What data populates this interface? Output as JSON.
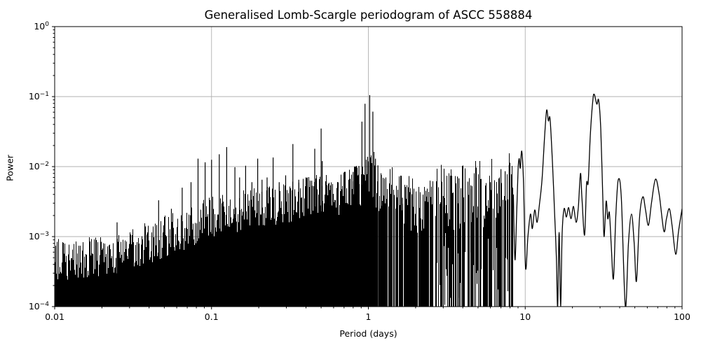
{
  "chart_data": {
    "type": "line",
    "title": "Generalised Lomb-Scargle periodogram of ASCC 558884",
    "xlabel": "Period (days)",
    "ylabel": "Power",
    "xscale": "log",
    "yscale": "log",
    "xlim": [
      0.01,
      100
    ],
    "ylim": [
      0.0001,
      1
    ],
    "grid": true,
    "legend": "none",
    "line_color": "#000000",
    "grid_color": "#b0b0b0",
    "background_color": "#ffffff",
    "x_tick_values": [
      0.01,
      0.1,
      1,
      10,
      100
    ],
    "x_tick_labels": [
      "0.01",
      "0.1",
      "1",
      "10",
      "100"
    ],
    "y_tick_exponents": [
      0,
      -1,
      -2,
      -3,
      -4
    ],
    "main_peaks": [
      {
        "period_days": 1.02,
        "power": 0.105
      },
      {
        "period_days": 27.6,
        "power": 0.107
      },
      {
        "period_days": 29.4,
        "power": 0.089
      },
      {
        "period_days": 0.952,
        "power": 0.079
      },
      {
        "period_days": 13.7,
        "power": 0.064
      },
      {
        "period_days": 1.068,
        "power": 0.061
      },
      {
        "period_days": 0.91,
        "power": 0.044
      },
      {
        "period_days": 0.5,
        "power": 0.035
      },
      {
        "period_days": 0.33,
        "power": 0.021
      },
      {
        "period_days": 9.5,
        "power": 0.0166
      }
    ],
    "noise_envelope": [
      [
        0.01,
        0.00055
      ],
      [
        0.013,
        0.00058
      ],
      [
        0.017,
        0.00062
      ],
      [
        0.022,
        0.00068
      ],
      [
        0.028,
        0.00075
      ],
      [
        0.035,
        0.0009
      ],
      [
        0.045,
        0.0011
      ],
      [
        0.055,
        0.0013
      ],
      [
        0.07,
        0.0016
      ],
      [
        0.085,
        0.002
      ],
      [
        0.1,
        0.0024
      ],
      [
        0.12,
        0.0026
      ],
      [
        0.15,
        0.0028
      ],
      [
        0.2,
        0.0032
      ],
      [
        0.25,
        0.0035
      ],
      [
        0.3,
        0.0038
      ],
      [
        0.4,
        0.0042
      ],
      [
        0.5,
        0.0048
      ],
      [
        0.6,
        0.0045
      ],
      [
        0.7,
        0.005
      ],
      [
        0.8,
        0.0058
      ],
      [
        0.9,
        0.0068
      ],
      [
        1.0,
        0.009
      ],
      [
        1.1,
        0.0075
      ],
      [
        1.3,
        0.0052
      ],
      [
        1.6,
        0.004
      ],
      [
        2.0,
        0.003
      ],
      [
        2.5,
        0.0035
      ],
      [
        3.0,
        0.004
      ],
      [
        4.0,
        0.0048
      ],
      [
        5.0,
        0.0045
      ],
      [
        6.0,
        0.005
      ],
      [
        7.0,
        0.0058
      ],
      [
        8.0,
        0.0062
      ],
      [
        8.4,
        0.0055
      ]
    ],
    "spikes": [
      [
        0.025,
        0.0016
      ],
      [
        0.046,
        0.0033
      ],
      [
        0.0555,
        0.0025
      ],
      [
        0.065,
        0.005
      ],
      [
        0.074,
        0.006
      ],
      [
        0.082,
        0.013
      ],
      [
        0.091,
        0.0115
      ],
      [
        0.1,
        0.0125
      ],
      [
        0.112,
        0.015
      ],
      [
        0.125,
        0.019
      ],
      [
        0.141,
        0.0098
      ],
      [
        0.151,
        0.007
      ],
      [
        0.165,
        0.0103
      ],
      [
        0.181,
        0.006
      ],
      [
        0.197,
        0.013
      ],
      [
        0.21,
        0.0065
      ],
      [
        0.226,
        0.007
      ],
      [
        0.247,
        0.0135
      ],
      [
        0.27,
        0.006
      ],
      [
        0.297,
        0.0075
      ],
      [
        0.33,
        0.021
      ],
      [
        0.36,
        0.0065
      ],
      [
        0.4,
        0.007
      ],
      [
        0.435,
        0.0063
      ],
      [
        0.455,
        0.018
      ],
      [
        0.5,
        0.035
      ],
      [
        0.508,
        0.012
      ],
      [
        0.545,
        0.0054
      ],
      [
        0.575,
        0.0054
      ],
      [
        0.64,
        0.006
      ],
      [
        0.7,
        0.007
      ],
      [
        0.75,
        0.0065
      ],
      [
        0.8,
        0.0084
      ],
      [
        0.835,
        0.0066
      ],
      [
        0.87,
        0.0102
      ],
      [
        0.91,
        0.044
      ],
      [
        0.952,
        0.079
      ],
      [
        1.02,
        0.105
      ],
      [
        1.068,
        0.061
      ],
      [
        1.11,
        0.013
      ],
      [
        1.15,
        0.0104
      ],
      [
        1.21,
        0.0076
      ],
      [
        1.65,
        0.0036
      ],
      [
        2.1,
        0.0026
      ],
      [
        2.5,
        0.0034
      ],
      [
        3.0,
        0.0038
      ],
      [
        3.7,
        0.0072
      ],
      [
        3.78,
        0.0068
      ],
      [
        4.5,
        0.0054
      ],
      [
        5.2,
        0.0066
      ],
      [
        6.0,
        0.006
      ],
      [
        7.0,
        0.0092
      ],
      [
        7.45,
        0.0086
      ],
      [
        7.9,
        0.0105
      ]
    ],
    "resolved_curve": [
      [
        8.4,
        0.004
      ],
      [
        8.6,
        0.00047
      ],
      [
        8.8,
        0.0018
      ],
      [
        9.0,
        0.0088
      ],
      [
        9.15,
        0.013
      ],
      [
        9.3,
        0.0095
      ],
      [
        9.5,
        0.0166
      ],
      [
        9.75,
        0.006
      ],
      [
        10.05,
        0.00036
      ],
      [
        10.4,
        0.001
      ],
      [
        10.8,
        0.0021
      ],
      [
        11.1,
        0.0013
      ],
      [
        11.5,
        0.0024
      ],
      [
        11.9,
        0.0016
      ],
      [
        12.3,
        0.0028
      ],
      [
        12.8,
        0.0065
      ],
      [
        13.3,
        0.028
      ],
      [
        13.7,
        0.064
      ],
      [
        14.05,
        0.045
      ],
      [
        14.4,
        0.048
      ],
      [
        14.9,
        0.012
      ],
      [
        15.4,
        0.0021
      ],
      [
        15.8,
        0.0005
      ],
      [
        16.1,
        0.0001
      ],
      [
        16.45,
        0.00115
      ],
      [
        16.8,
        0.0001
      ],
      [
        17.2,
        0.0011
      ],
      [
        17.7,
        0.0025
      ],
      [
        18.3,
        0.0019
      ],
      [
        18.9,
        0.0026
      ],
      [
        19.6,
        0.0018
      ],
      [
        20.3,
        0.0027
      ],
      [
        21.1,
        0.0016
      ],
      [
        21.8,
        0.0026
      ],
      [
        22.5,
        0.008
      ],
      [
        23.0,
        0.0035
      ],
      [
        23.9,
        0.00105
      ],
      [
        24.6,
        0.0056
      ],
      [
        25.2,
        0.006
      ],
      [
        26.0,
        0.028
      ],
      [
        27.0,
        0.09
      ],
      [
        27.6,
        0.107
      ],
      [
        28.6,
        0.078
      ],
      [
        29.4,
        0.089
      ],
      [
        30.3,
        0.035
      ],
      [
        31.2,
        0.004
      ],
      [
        31.8,
        0.001
      ],
      [
        32.8,
        0.0032
      ],
      [
        33.6,
        0.0018
      ],
      [
        34.4,
        0.0022
      ],
      [
        35.3,
        0.0008
      ],
      [
        36.5,
        0.00025
      ],
      [
        37.8,
        0.002
      ],
      [
        39.2,
        0.0065
      ],
      [
        41.0,
        0.0035
      ],
      [
        43.5,
        0.0001
      ],
      [
        45.5,
        0.0008
      ],
      [
        47.6,
        0.0021
      ],
      [
        49.5,
        0.0008
      ],
      [
        51.2,
        0.00023
      ],
      [
        53.5,
        0.0018
      ],
      [
        56.2,
        0.0037
      ],
      [
        58.5,
        0.0024
      ],
      [
        61.0,
        0.00145
      ],
      [
        63.8,
        0.003
      ],
      [
        67.6,
        0.0066
      ],
      [
        71.5,
        0.004
      ],
      [
        76.5,
        0.0012
      ],
      [
        79.5,
        0.0018
      ],
      [
        83.0,
        0.0025
      ],
      [
        86.5,
        0.0014
      ],
      [
        91.1,
        0.00056
      ],
      [
        95.0,
        0.0012
      ],
      [
        100.0,
        0.0025
      ]
    ]
  }
}
